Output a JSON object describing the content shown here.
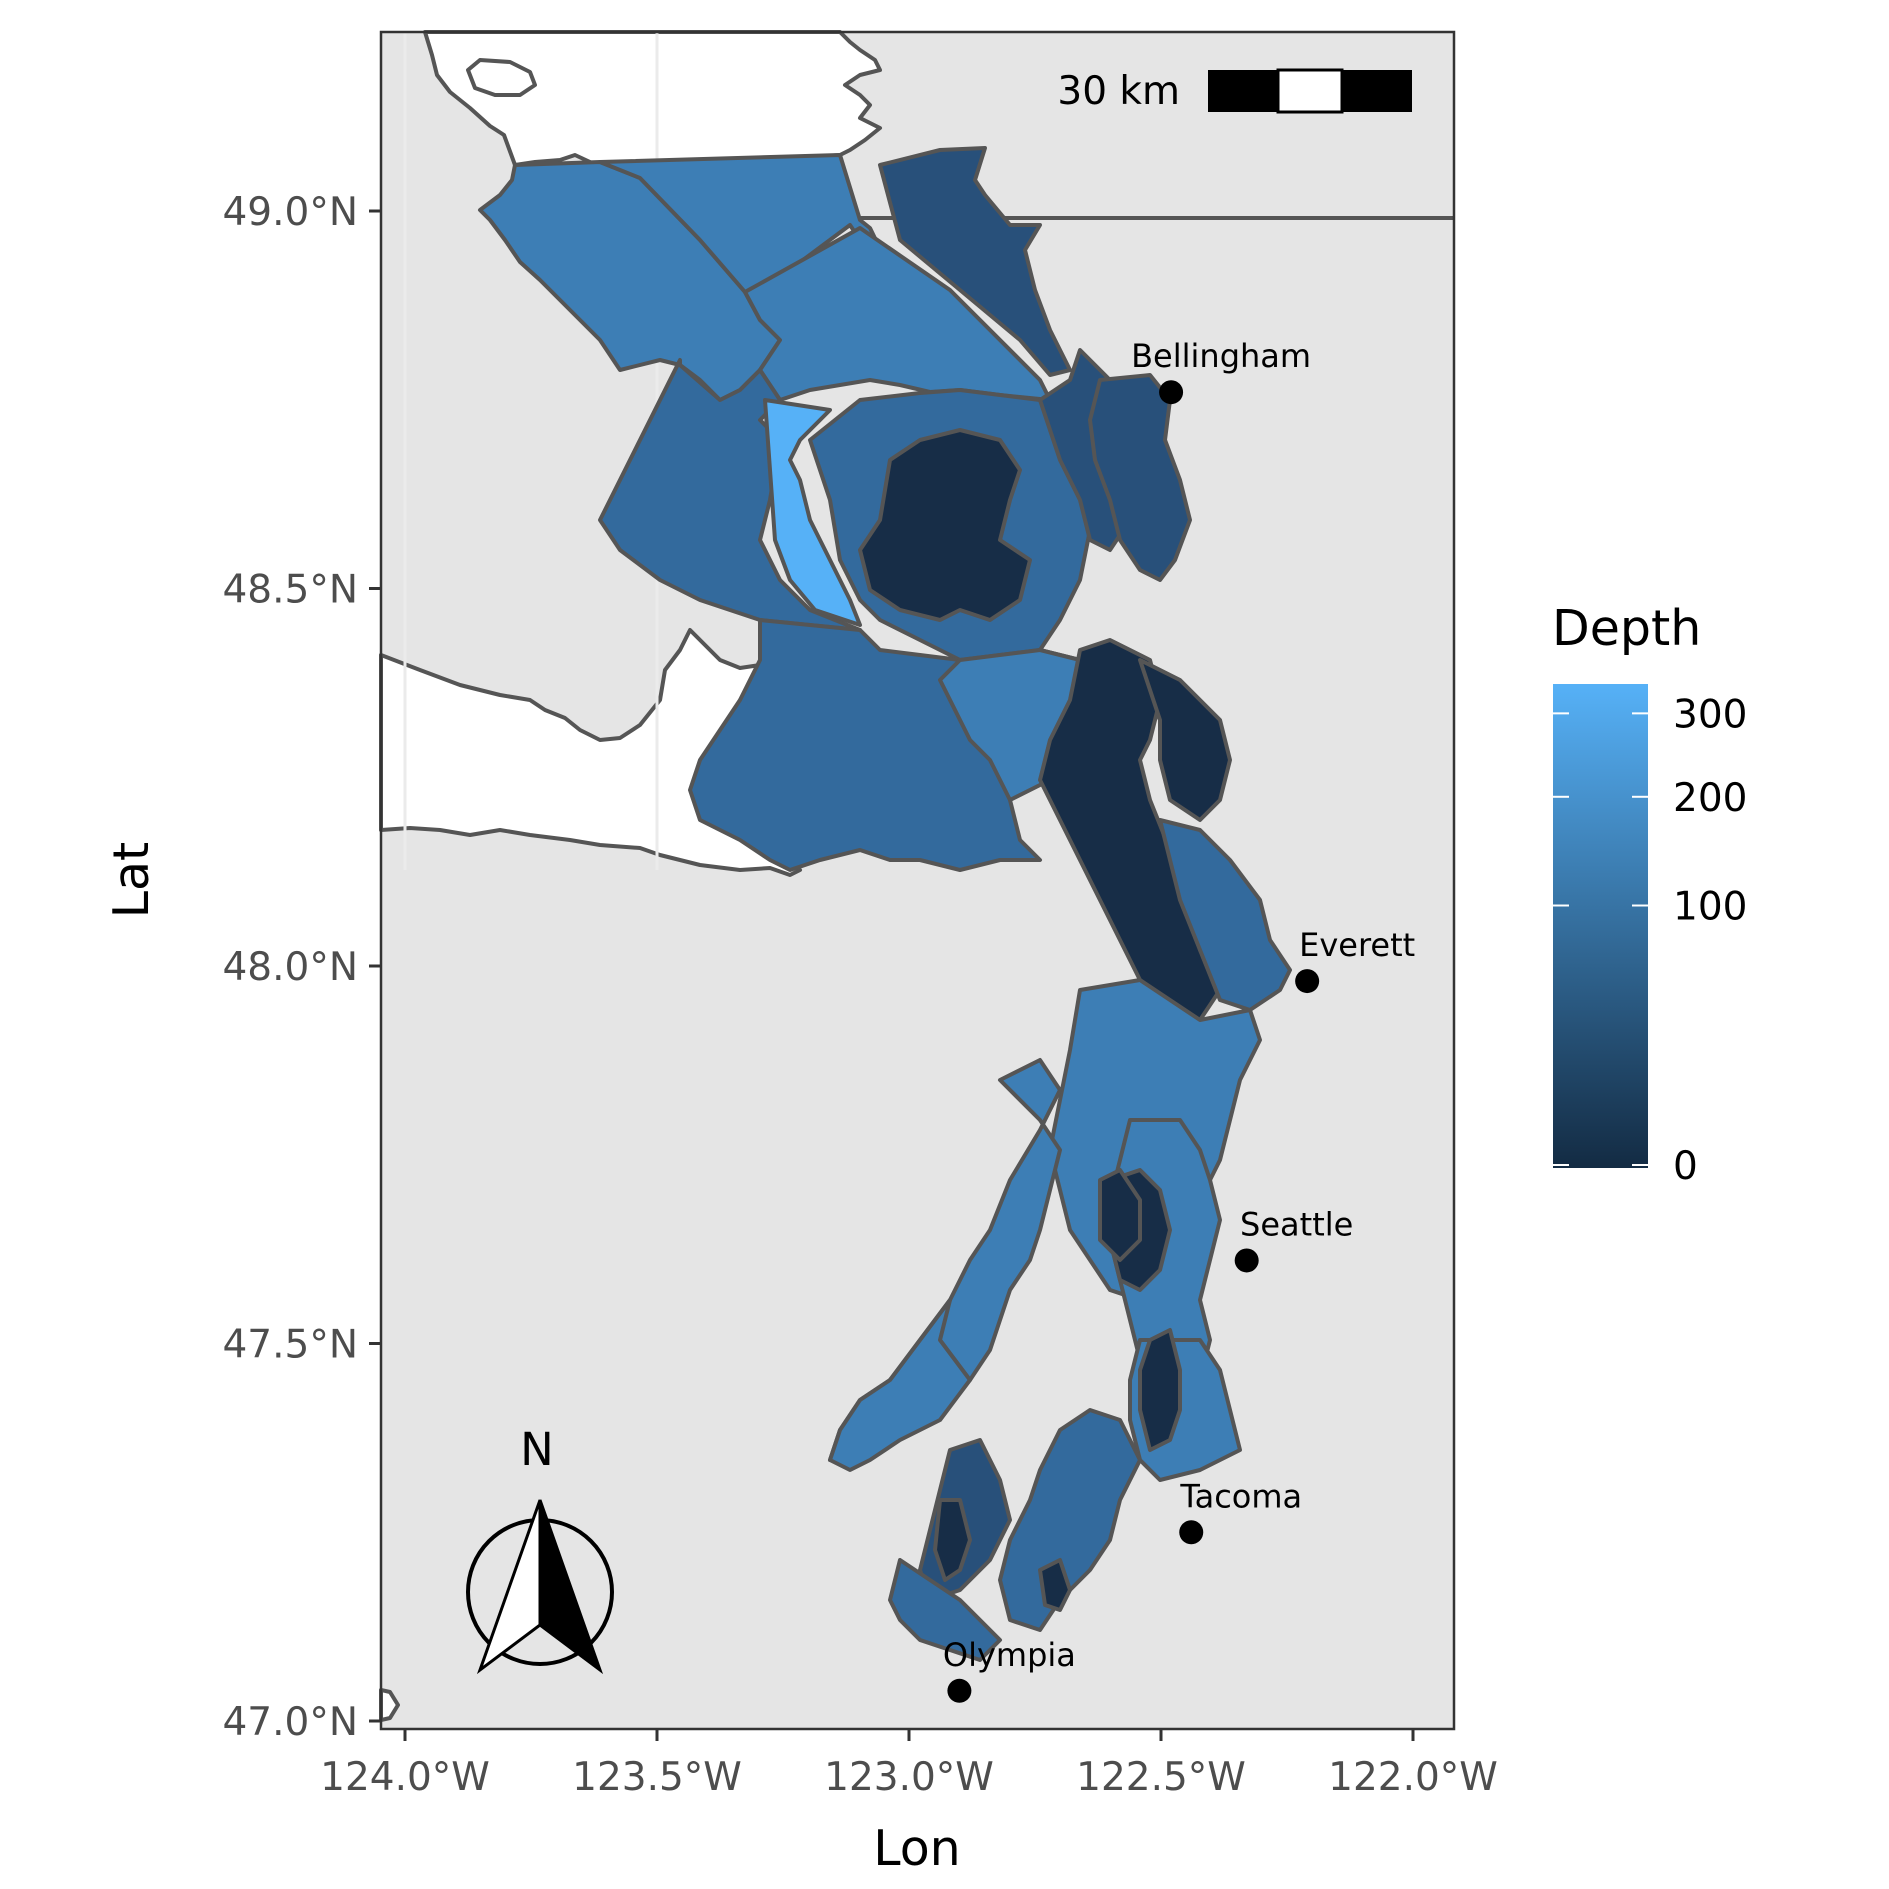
{
  "map": {
    "x_axis": {
      "title": "Lon",
      "ticks": [
        {
          "value": -124.0,
          "label": "124.0°W"
        },
        {
          "value": -123.5,
          "label": "123.5°W"
        },
        {
          "value": -123.0,
          "label": "123.0°W"
        },
        {
          "value": -122.5,
          "label": "122.5°W"
        },
        {
          "value": -122.0,
          "label": "122.0°W"
        }
      ]
    },
    "y_axis": {
      "title": "Lat",
      "ticks": [
        {
          "value": 49.0,
          "label": "49.0°N"
        },
        {
          "value": 48.5,
          "label": "48.5°N"
        },
        {
          "value": 48.0,
          "label": "48.0°N"
        },
        {
          "value": 47.5,
          "label": "47.5°N"
        },
        {
          "value": 47.0,
          "label": "47.0°N"
        }
      ]
    },
    "cities": [
      {
        "name": "Bellingham",
        "lon": -122.48,
        "lat": 48.76
      },
      {
        "name": "Everett",
        "lon": -122.21,
        "lat": 47.98
      },
      {
        "name": "Seattle",
        "lon": -122.33,
        "lat": 47.61
      },
      {
        "name": "Tacoma",
        "lon": -122.44,
        "lat": 47.25
      },
      {
        "name": "Olympia",
        "lon": -122.9,
        "lat": 47.04
      }
    ],
    "legend": {
      "title": "Depth",
      "breaks": [
        {
          "value": 300,
          "label": "300"
        },
        {
          "value": 200,
          "label": "200"
        },
        {
          "value": 100,
          "label": "100"
        },
        {
          "value": 0,
          "label": "0"
        }
      ],
      "color_low": "#132B43",
      "color_high": "#56B1F7"
    },
    "scale_bar": {
      "label": "30 km"
    },
    "north_arrow": {
      "label": "N"
    },
    "colors": {
      "panel": "#e5e5e5",
      "land": "#ffffff",
      "border": "#555555",
      "depth_deep": "#56B1F7",
      "depth_high": "#3d7eb5",
      "depth_mid": "#336a9d",
      "depth_lowmid": "#28507a",
      "depth_shallow": "#172d47"
    }
  }
}
